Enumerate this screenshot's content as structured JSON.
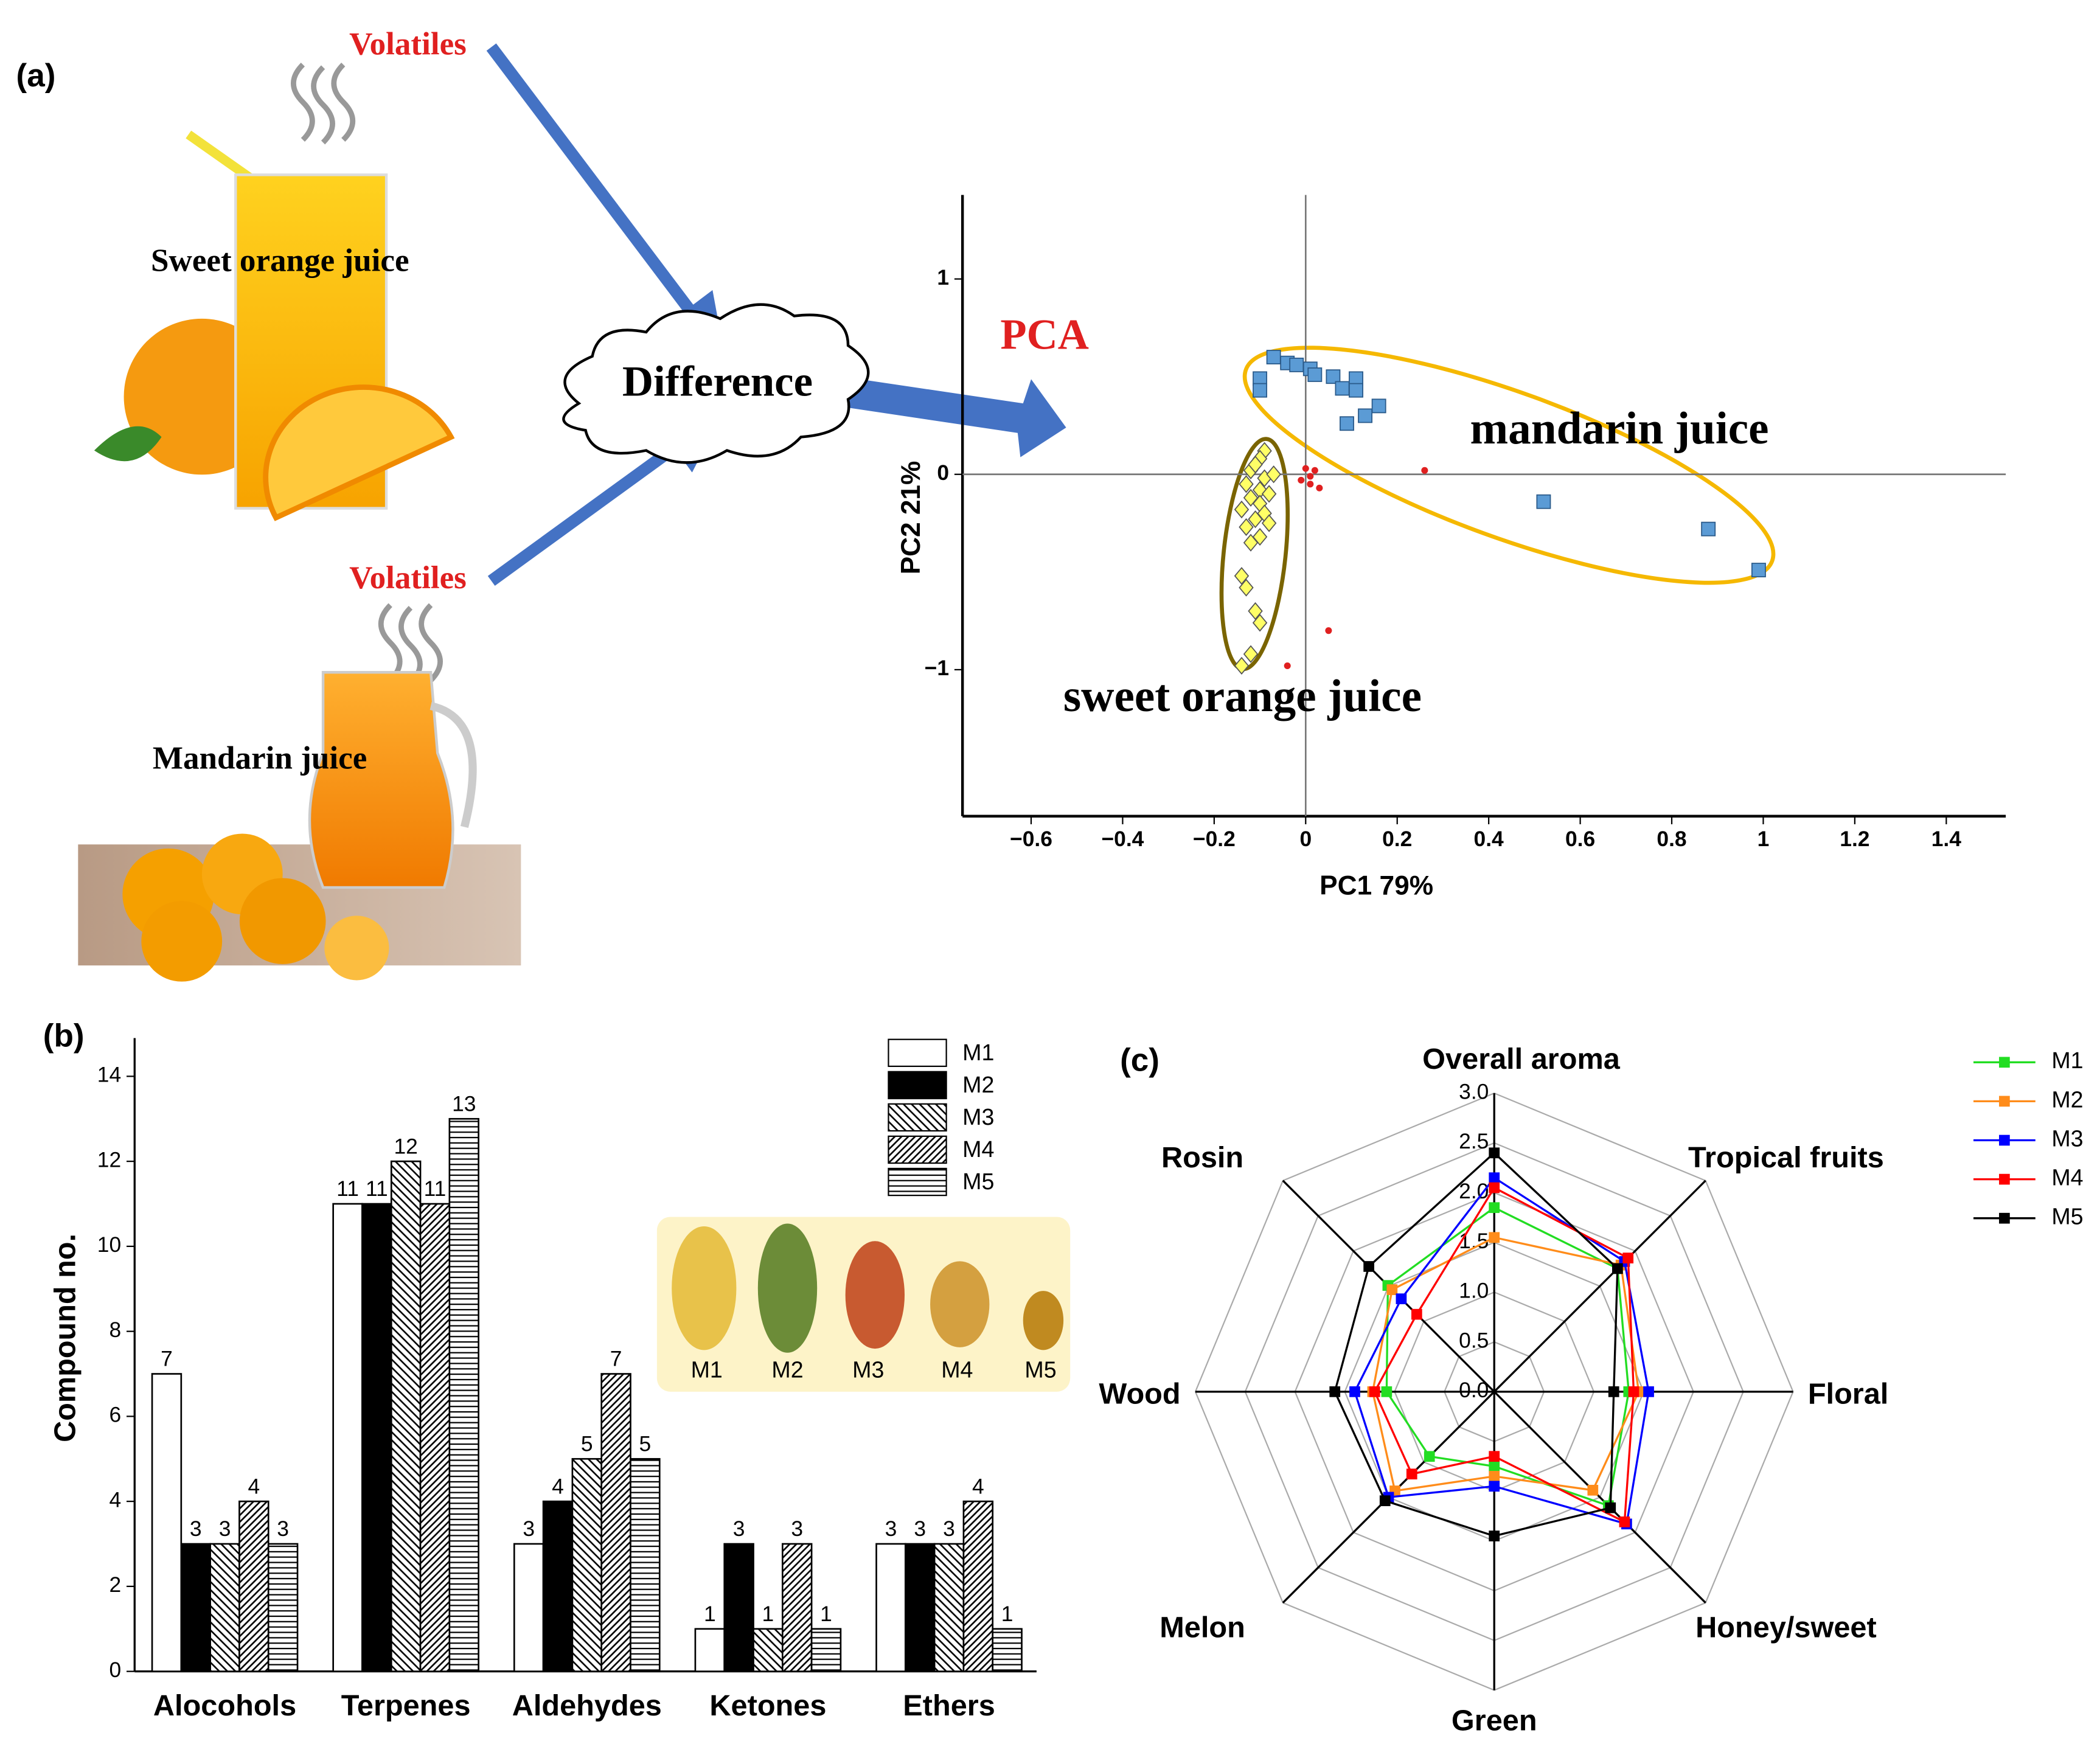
{
  "panel_labels": [
    "(a)",
    "(b)",
    "(c)"
  ],
  "diagram": {
    "volatiles_top": "Volatiles",
    "volatiles_bottom": "Volatiles",
    "sweet_orange": "Sweet orange juice",
    "mandarin": "Mandarin juice",
    "difference": "Difference",
    "method": "PCA"
  },
  "chart_data": [
    {
      "type": "scatter",
      "xlabel": "PC1 79%",
      "ylabel": "PC2 21%",
      "xlim": [
        -0.75,
        1.53
      ],
      "ylim": [
        -1.75,
        1.43
      ],
      "xticks": [
        {
          "value": -0.6,
          "label": "−0.6"
        },
        {
          "value": -0.4,
          "label": "−0.4"
        },
        {
          "value": -0.2,
          "label": "−0.2"
        },
        0,
        0.2,
        0.4,
        0.6,
        0.8,
        1,
        1.2,
        1.4
      ],
      "yticks": [
        {
          "value": -1,
          "label": "−1"
        },
        0,
        1
      ],
      "annotations": [
        "mandarin juice",
        "sweet orange juice"
      ],
      "series": [
        {
          "color": "#5b9bd5",
          "marker": "square",
          "x": [
            -0.07,
            -0.1,
            -0.1,
            -0.04,
            -0.02,
            0.01,
            0.02,
            0.06,
            0.08,
            0.11,
            0.11,
            0.16,
            0.13,
            0.09,
            0.52,
            0.88,
            0.99
          ],
          "y": [
            0.6,
            0.49,
            0.43,
            0.57,
            0.56,
            0.54,
            0.51,
            0.5,
            0.44,
            0.49,
            0.43,
            0.35,
            0.3,
            0.26,
            -0.14,
            -0.28,
            -0.49
          ]
        },
        {
          "color": "#ffff66",
          "marker": "diamond",
          "x": [
            -0.09,
            -0.1,
            -0.12,
            -0.09,
            -0.13,
            -0.1,
            -0.08,
            -0.12,
            -0.1,
            -0.14,
            -0.09,
            -0.11,
            -0.13,
            -0.08,
            -0.1,
            -0.12,
            -0.14,
            -0.13,
            -0.11,
            -0.1,
            -0.14,
            -0.12,
            -0.07,
            -0.11
          ],
          "y": [
            0.12,
            0.08,
            0.02,
            -0.02,
            -0.05,
            -0.08,
            -0.1,
            -0.12,
            -0.15,
            -0.18,
            -0.2,
            -0.23,
            -0.27,
            -0.25,
            -0.32,
            -0.35,
            -0.52,
            -0.58,
            -0.7,
            -0.76,
            -0.98,
            -0.92,
            0.0,
            0.05
          ]
        },
        {
          "color": "#e02020",
          "marker": "circle",
          "x": [
            0,
            0.01,
            -0.01,
            0.02,
            0.03,
            0.01,
            0.26,
            0.05,
            -0.04
          ],
          "y": [
            0.03,
            -0.01,
            -0.03,
            0.02,
            -0.07,
            -0.05,
            0.02,
            -0.8,
            -0.98
          ]
        }
      ]
    },
    {
      "type": "bar",
      "ylabel": "Compound no.",
      "categories": [
        "Alocohols",
        "Terpenes",
        "Aldehydes",
        "Ketones",
        "Ethers"
      ],
      "ylim": [
        0,
        14.9
      ],
      "yticks": [
        0,
        2,
        4,
        6,
        8,
        10,
        12,
        14
      ],
      "series": [
        {
          "name": "M1",
          "color": "#ffffff",
          "hatch": "none",
          "values": [
            7,
            11,
            3,
            1,
            3
          ]
        },
        {
          "name": "M2",
          "color": "#000000",
          "hatch": "none",
          "values": [
            3,
            11,
            4,
            3,
            3
          ]
        },
        {
          "name": "M3",
          "color": "#ffffff",
          "hatch": "backslash",
          "values": [
            3,
            12,
            5,
            1,
            3
          ]
        },
        {
          "name": "M4",
          "color": "#ffffff",
          "hatch": "slash",
          "values": [
            4,
            11,
            7,
            3,
            4
          ]
        },
        {
          "name": "M5",
          "color": "#ffffff",
          "hatch": "horizontal",
          "values": [
            3,
            13,
            5,
            1,
            1
          ]
        }
      ],
      "inset_labels": [
        "M1",
        "M2",
        "M3",
        "M4",
        "M5"
      ]
    },
    {
      "type": "radar",
      "axes": [
        "Overall aroma",
        "Tropical fruits",
        "Floral",
        "Honey/sweet",
        "Green",
        "Melon",
        "Wood",
        "Rosin"
      ],
      "rlim": [
        0,
        3
      ],
      "rticks": [
        {
          "value": 0,
          "label": "0.0"
        },
        0.5,
        {
          "value": 1,
          "label": "1.0"
        },
        1.5,
        {
          "value": 2,
          "label": "2.0"
        },
        2.5,
        {
          "value": 3,
          "label": "3.0"
        }
      ],
      "series": [
        {
          "name": "M1",
          "color": "#22dd22",
          "values": [
            1.85,
            1.75,
            1.35,
            1.62,
            0.75,
            0.92,
            1.08,
            1.51
          ]
        },
        {
          "name": "M2",
          "color": "#ff8c1a",
          "values": [
            1.55,
            1.8,
            1.45,
            1.4,
            0.85,
            1.41,
            1.22,
            1.45
          ]
        },
        {
          "name": "M3",
          "color": "#0000ff",
          "values": [
            2.15,
            1.85,
            1.55,
            1.88,
            0.95,
            1.5,
            1.4,
            1.32
          ]
        },
        {
          "name": "M4",
          "color": "#ff0000",
          "values": [
            2.05,
            1.9,
            1.4,
            1.85,
            0.65,
            1.17,
            1.2,
            1.1
          ]
        },
        {
          "name": "M5",
          "color": "#000000",
          "values": [
            2.4,
            1.75,
            1.2,
            1.65,
            1.45,
            1.55,
            1.6,
            1.78
          ]
        }
      ]
    }
  ]
}
